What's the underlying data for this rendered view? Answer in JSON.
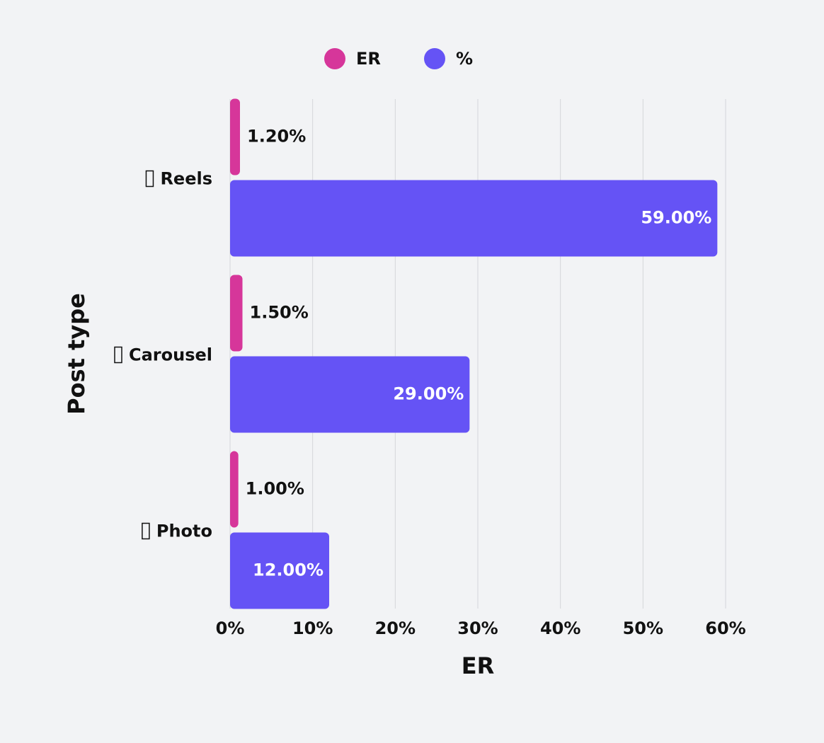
{
  "chart_data": {
    "type": "hbar",
    "x_label": "ER",
    "y_label": "Post type",
    "categories": [
      "Reels",
      "Carousel",
      "Photo"
    ],
    "series": [
      {
        "name": "ER",
        "color": "#d6369a",
        "values": [
          1.2,
          1.5,
          1.0
        ],
        "value_labels": [
          "1.20%",
          "1.50%",
          "1.00%"
        ]
      },
      {
        "name": "%",
        "color": "#6553f5",
        "values": [
          59,
          29,
          12
        ],
        "value_labels": [
          "59.00%",
          "29.00%",
          "12.00%"
        ]
      }
    ],
    "xlim": [
      0,
      60
    ],
    "xticks": [
      {
        "value": 0,
        "label": "0%"
      },
      {
        "value": 10,
        "label": "10%"
      },
      {
        "value": 20,
        "label": "20%"
      },
      {
        "value": 30,
        "label": "30%"
      },
      {
        "value": 40,
        "label": "40%"
      },
      {
        "value": 50,
        "label": "50%"
      },
      {
        "value": 60,
        "label": "60%"
      }
    ],
    "grid": true
  }
}
